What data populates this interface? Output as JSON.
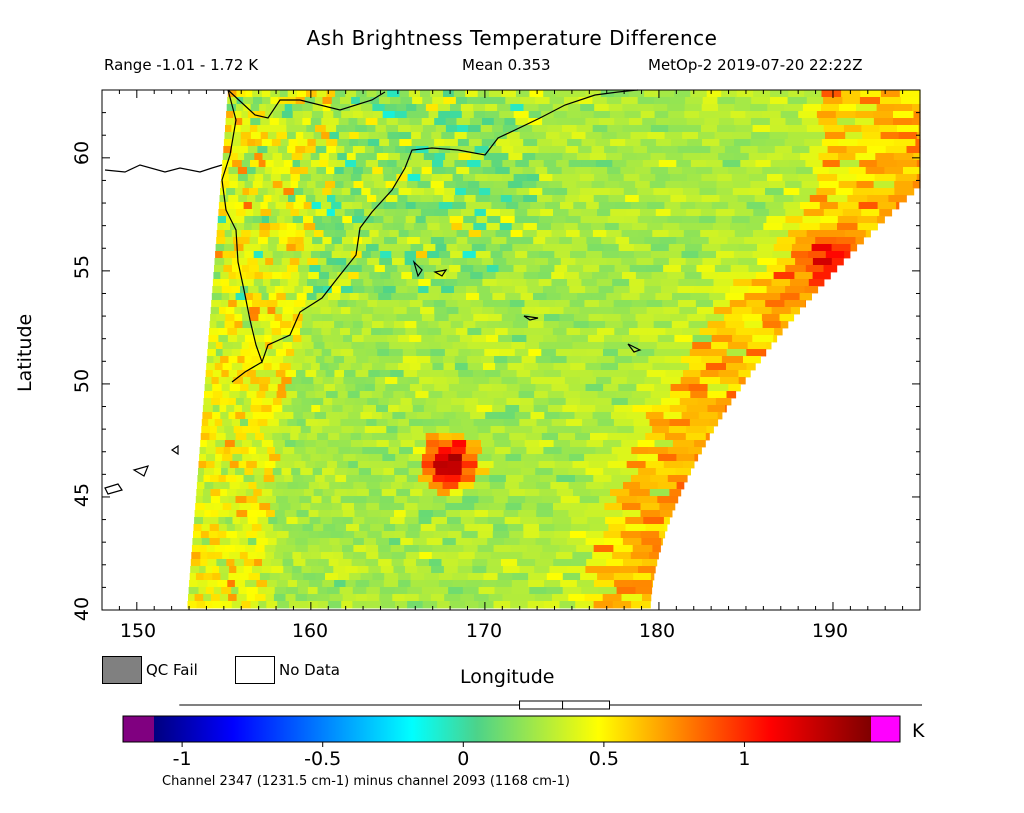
{
  "title": "Ash Brightness Temperature Difference",
  "header": {
    "range": "Range -1.01 - 1.72 K",
    "mean": "Mean 0.353",
    "satellite": "MetOp-2 2019-07-20 22:22Z"
  },
  "map": {
    "x_axis_label": "Longitude",
    "y_axis_label": "Latitude",
    "x_ticks": [
      "150",
      "160",
      "170",
      "180",
      "190"
    ],
    "y_ticks": [
      "40",
      "45",
      "50",
      "55",
      "60"
    ],
    "lon_range": [
      148,
      195
    ],
    "lat_range": [
      40,
      63
    ],
    "hotspot": {
      "lon": 168,
      "lat": 46.5,
      "value": 1.4
    },
    "secondary_hotspot": {
      "lon": 189.5,
      "lat": 55.5,
      "value": 1.0
    }
  },
  "legend": {
    "qc_fail": "QC Fail",
    "no_data": "No Data",
    "qc_fail_color": "#808080",
    "no_data_color": "#ffffff"
  },
  "colorbar": {
    "range": [
      -1.1,
      1.45
    ],
    "ticks": [
      "-1",
      "-0.5",
      "0",
      "0.5",
      "1"
    ],
    "tick_values": [
      -1,
      -0.5,
      0,
      0.5,
      1
    ],
    "unit": "K",
    "underflow_color": "#800080",
    "overflow_color": "#ff00ff",
    "box_plot": {
      "min": -1.01,
      "q1": 0.2,
      "median": 0.353,
      "q3": 0.52,
      "max": 1.72
    },
    "caption": "Channel 2347 (1231.5 cm-1) minus channel 2093 (1168 cm-1)"
  }
}
